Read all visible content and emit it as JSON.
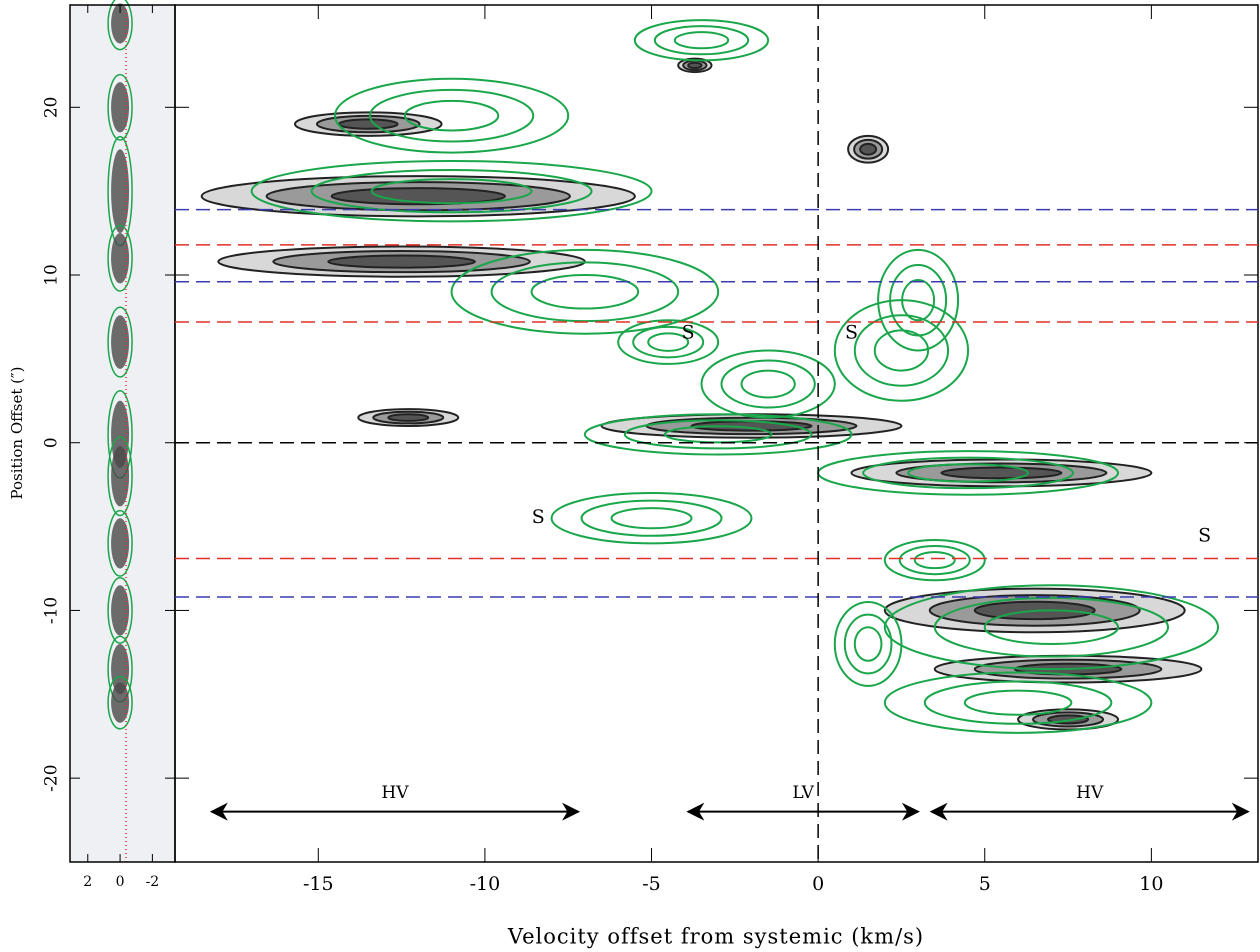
{
  "chart_data": [
    {
      "type": "image",
      "ylabel": "Position Offset (″)",
      "xlim": [
        3.1,
        -3.4
      ],
      "ylim": [
        -25,
        26.1
      ],
      "xticks": [
        2,
        0,
        -2
      ],
      "yticks": [
        -20,
        -10,
        0,
        10,
        20
      ],
      "knots": [
        {
          "y": 25,
          "dy": 1.2
        },
        {
          "y": 20,
          "dy": 1.5
        },
        {
          "y": 15,
          "dy": 2.5
        },
        {
          "y": 11,
          "dy": 1.5
        },
        {
          "y": 6,
          "dy": 1.6
        },
        {
          "y": 0.5,
          "dy": 2
        },
        {
          "y": -2,
          "dy": 1.8
        },
        {
          "y": -6,
          "dy": 1.5
        },
        {
          "y": -10,
          "dy": 1.5
        },
        {
          "y": -13.5,
          "dy": 1.5
        },
        {
          "y": -15.5,
          "dy": 1.2
        }
      ],
      "color": "#4a4a4a",
      "contour_color": "#1aa64a"
    },
    {
      "type": "contour",
      "xlabel": "Velocity offset from systemic (km/s)",
      "xlim": [
        -19.3,
        13.2
      ],
      "ylim": [
        -25,
        26.1
      ],
      "xticks": [
        -15,
        -10,
        -5,
        0,
        5,
        10
      ],
      "yticks": [
        -20,
        -10,
        0,
        10,
        20
      ],
      "vline": 0,
      "hlines": [
        {
          "value": 13.9,
          "color": "#3b3bb0"
        },
        {
          "value": 11.8,
          "color": "#e0302a"
        },
        {
          "value": 9.6,
          "color": "#3b3bb0"
        },
        {
          "value": 7.2,
          "color": "#e0302a"
        },
        {
          "value": 0,
          "color": "#000000"
        },
        {
          "value": -6.9,
          "color": "#e0302a"
        },
        {
          "value": -9.2,
          "color": "#3b3bb0"
        }
      ],
      "ranges": [
        {
          "label": "HV",
          "x": [
            -18.2,
            -7.2
          ],
          "y": -22
        },
        {
          "label": "LV",
          "x": [
            -3.9,
            3.0
          ],
          "y": -22
        },
        {
          "label": "HV",
          "x": [
            3.4,
            12.9
          ],
          "y": -22
        }
      ],
      "annotations": [
        {
          "text": "S",
          "x": -3.9,
          "y": 6.5
        },
        {
          "text": "S",
          "x": 1.0,
          "y": 6.5
        },
        {
          "text": "S",
          "x": -8.4,
          "y": -4.5
        },
        {
          "text": "S",
          "x": 11.6,
          "y": -5.6
        }
      ],
      "black_color": "#222222",
      "green_color": "#1aa64a",
      "black_components": [
        {
          "x": -12,
          "y": 14.7,
          "dx": 6.5,
          "dy": 1.2
        },
        {
          "x": -12.5,
          "y": 10.8,
          "dx": 5.5,
          "dy": 0.9
        },
        {
          "x": -13.5,
          "y": 19,
          "dx": 2.2,
          "dy": 0.7
        },
        {
          "x": -2,
          "y": 1,
          "dx": 4.5,
          "dy": 0.7
        },
        {
          "x": -12.3,
          "y": 1.5,
          "dx": 1.5,
          "dy": 0.5
        },
        {
          "x": 5.5,
          "y": -1.8,
          "dx": 4.5,
          "dy": 0.8
        },
        {
          "x": 6.5,
          "y": -10,
          "dx": 4.5,
          "dy": 1.3
        },
        {
          "x": 7.5,
          "y": -13.5,
          "dx": 4,
          "dy": 0.8
        },
        {
          "x": 7.5,
          "y": -16.5,
          "dx": 1.5,
          "dy": 0.6
        },
        {
          "x": 1.5,
          "y": 17.5,
          "dx": 0.6,
          "dy": 0.8
        },
        {
          "x": -3.7,
          "y": 22.5,
          "dx": 0.5,
          "dy": 0.4
        }
      ],
      "green_components": [
        {
          "x": -11,
          "y": 15,
          "dx": 6,
          "dy": 1.8
        },
        {
          "x": -11,
          "y": 19.5,
          "dx": 3.5,
          "dy": 2.2
        },
        {
          "x": -3.5,
          "y": 24,
          "dx": 2,
          "dy": 1.2
        },
        {
          "x": -7,
          "y": 9,
          "dx": 4,
          "dy": 2.5
        },
        {
          "x": -4.5,
          "y": 6,
          "dx": 1.5,
          "dy": 1.3
        },
        {
          "x": -1.5,
          "y": 3.5,
          "dx": 2,
          "dy": 2
        },
        {
          "x": -3,
          "y": 0.5,
          "dx": 4,
          "dy": 1.2
        },
        {
          "x": 2.5,
          "y": 5.5,
          "dx": 2,
          "dy": 3
        },
        {
          "x": 3,
          "y": 8.5,
          "dx": 1.2,
          "dy": 3
        },
        {
          "x": 4.5,
          "y": -1.8,
          "dx": 4.5,
          "dy": 1.3
        },
        {
          "x": -5,
          "y": -4.5,
          "dx": 3,
          "dy": 1.5
        },
        {
          "x": 3.5,
          "y": -7,
          "dx": 1.5,
          "dy": 1.2
        },
        {
          "x": 7,
          "y": -11,
          "dx": 5,
          "dy": 2.5
        },
        {
          "x": 6,
          "y": -15.5,
          "dx": 4,
          "dy": 1.8
        },
        {
          "x": 1.5,
          "y": -12,
          "dx": 1,
          "dy": 2.5
        }
      ]
    }
  ]
}
